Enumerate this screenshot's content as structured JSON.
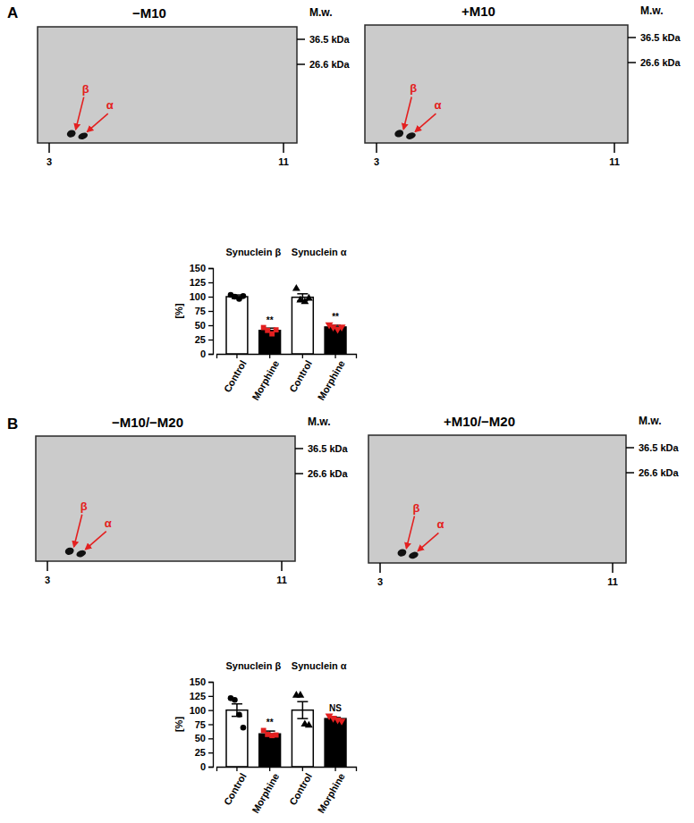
{
  "panels": [
    {
      "label": "A",
      "gels": [
        {
          "title": "−M10",
          "mw_label": "M.w.",
          "mw_markers": [
            {
              "value": 36.5,
              "label": "36.5 kDa"
            },
            {
              "value": 26.6,
              "label": "26.6 kDa"
            }
          ],
          "ph_ticks": [
            3,
            11
          ],
          "spots": [
            "β",
            "α"
          ]
        },
        {
          "title": "+M10",
          "mw_label": "M.w.",
          "mw_markers": [
            {
              "value": 36.5,
              "label": "36.5 kDa"
            },
            {
              "value": 26.6,
              "label": "26.6 kDa"
            }
          ],
          "ph_ticks": [
            3,
            11
          ],
          "spots": [
            "β",
            "α"
          ]
        }
      ]
    },
    {
      "label": "B",
      "gels": [
        {
          "title": "−M10/−M20",
          "mw_label": "M.w.",
          "mw_markers": [
            {
              "value": 36.5,
              "label": "36.5 kDa"
            },
            {
              "value": 26.6,
              "label": "26.6 kDa"
            }
          ],
          "ph_ticks": [
            3,
            11
          ],
          "spots": [
            "β",
            "α"
          ]
        },
        {
          "title": "+M10/−M20",
          "mw_label": "M.w.",
          "mw_markers": [
            {
              "value": 36.5,
              "label": "36.5 kDa"
            },
            {
              "value": 26.6,
              "label": "26.6 kDa"
            }
          ],
          "ph_ticks": [
            3,
            11
          ],
          "spots": [
            "β",
            "α"
          ]
        }
      ]
    }
  ],
  "chart_data": [
    {
      "type": "bar",
      "group_labels": [
        "Synuclein β",
        "Synuclein α"
      ],
      "categories": [
        "Control",
        "Morphine",
        "Control",
        "Morphine"
      ],
      "values": [
        100,
        41,
        99,
        47
      ],
      "errors": [
        3,
        4,
        6,
        3
      ],
      "colors": [
        "#ffffff",
        "#000000",
        "#ffffff",
        "#000000"
      ],
      "points": [
        {
          "values": [
            103,
            100,
            96,
            101
          ],
          "color": "#000000",
          "marker": "circle"
        },
        {
          "values": [
            46,
            41,
            35,
            42
          ],
          "color": "#e32020",
          "marker": "square"
        },
        {
          "values": [
            114,
            94,
            91,
            97
          ],
          "color": "#000000",
          "marker": "triangle"
        },
        {
          "values": [
            51,
            47,
            43,
            47
          ],
          "color": "#e32020",
          "marker": "triangle-down"
        }
      ],
      "annotations": [
        null,
        "**",
        null,
        "**"
      ],
      "y_label": "[%]",
      "ylim": [
        0,
        150
      ],
      "yticks": [
        0,
        25,
        50,
        75,
        100,
        125,
        150
      ]
    },
    {
      "type": "bar",
      "group_labels": [
        "Synuclein β",
        "Synuclein α"
      ],
      "categories": [
        "Control",
        "Morphine",
        "Control",
        "Morphine"
      ],
      "values": [
        100,
        58,
        100,
        85
      ],
      "errors": [
        11,
        5,
        15,
        2
      ],
      "colors": [
        "#ffffff",
        "#000000",
        "#ffffff",
        "#000000"
      ],
      "points": [
        {
          "values": [
            121,
            118,
            92,
            69
          ],
          "color": "#000000",
          "marker": "circle"
        },
        {
          "values": [
            64,
            57,
            55,
            56
          ],
          "color": "#e32020",
          "marker": "square"
        },
        {
          "values": [
            126,
            126,
            75,
            73
          ],
          "color": "#000000",
          "marker": "triangle"
        },
        {
          "values": [
            90,
            86,
            83,
            81
          ],
          "color": "#e32020",
          "marker": "triangle-down"
        }
      ],
      "annotations": [
        null,
        "**",
        null,
        "NS"
      ],
      "y_label": "[%]",
      "ylim": [
        0,
        150
      ],
      "yticks": [
        0,
        25,
        50,
        75,
        100,
        125,
        150
      ]
    }
  ]
}
